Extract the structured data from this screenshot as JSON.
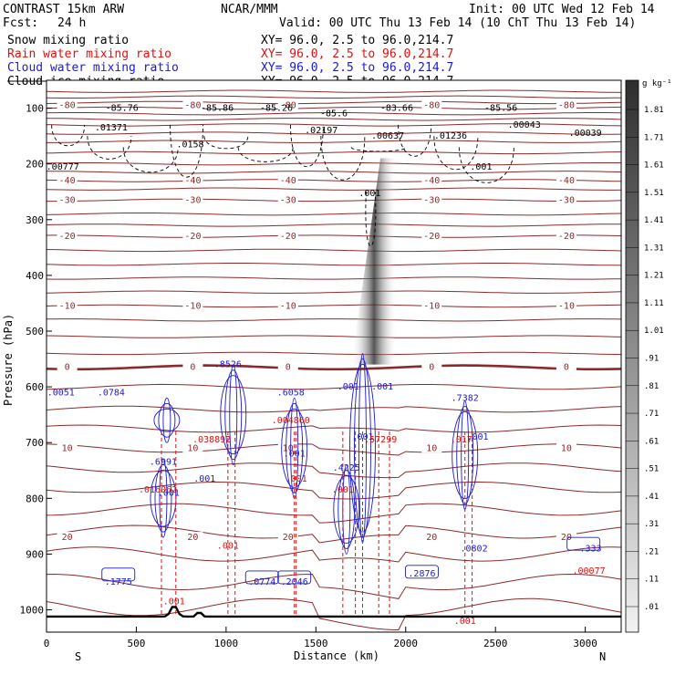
{
  "header": {
    "model": "CONTRAST 15km ARW",
    "org": "NCAR/MMM",
    "init": "Init: 00 UTC Wed 12 Feb 14",
    "fcst_label": "Fcst:",
    "fcst_value": "24 h",
    "valid": "Valid: 00 UTC Thu 13 Feb 14 (10 ChT Thu 13 Feb 14)"
  },
  "fields": [
    {
      "name": "Snow mixing ratio",
      "color": "#000000",
      "xy": "XY=  96.0,  2.5 to  96.0,214.7"
    },
    {
      "name": "Rain water mixing ratio",
      "color": "#e01010",
      "xy": "XY=  96.0,  2.5 to  96.0,214.7"
    },
    {
      "name": "Cloud water mixing ratio",
      "color": "#1a1ad0",
      "xy": "XY=  96.0,  2.5 to  96.0,214.7"
    },
    {
      "name": "Cloud ice mixing ratio",
      "color": "#000000",
      "xy": "XY=  96.0,  2.5 to  96.0,214.7"
    }
  ],
  "colorbar": {
    "unit": "g kg⁻¹",
    "labels": [
      "1.81",
      "1.71",
      "1.61",
      "1.51",
      "1.41",
      "1.31",
      "1.21",
      "1.11",
      "1.01",
      ".91",
      ".81",
      ".71",
      ".61",
      ".51",
      ".41",
      ".31",
      ".21",
      ".11",
      ".01"
    ]
  },
  "chart_data": {
    "type": "contour",
    "xlabel": "Distance (km)",
    "ylabel": "Pressure (hPa)",
    "x_ticks": [
      "0",
      "500",
      "1000",
      "1500",
      "2000",
      "2500",
      "3000"
    ],
    "y_ticks": [
      "100",
      "200",
      "300",
      "400",
      "500",
      "600",
      "700",
      "800",
      "900",
      "1000"
    ],
    "xlim": [
      0,
      3200
    ],
    "ylim": [
      1040,
      50
    ],
    "endpoints": {
      "left": "S",
      "right": "N"
    },
    "temperature_isotherms": [
      {
        "label": "-80",
        "p": 95
      },
      {
        "label": "-40",
        "p": 230
      },
      {
        "label": "-30",
        "p": 265
      },
      {
        "label": "-20",
        "p": 330
      },
      {
        "label": "-10",
        "p": 455
      },
      {
        "label": "0",
        "p": 565
      },
      {
        "label": "10",
        "p": 710
      },
      {
        "label": "20",
        "p": 870
      }
    ],
    "pressure_labels_on_isotherms": [
      {
        "text": "-85.76",
        "x": 420,
        "p": 105
      },
      {
        "text": "-85.86",
        "x": 950,
        "p": 105
      },
      {
        "text": "-85.26",
        "x": 1280,
        "p": 105
      },
      {
        "text": "-85.6",
        "x": 1600,
        "p": 115
      },
      {
        "text": "-83.66",
        "x": 1950,
        "p": 105
      },
      {
        "text": "-85.56",
        "x": 2530,
        "p": 105
      }
    ],
    "cloud_ice_extrema": [
      {
        "text": ".01371",
        "x": 360,
        "p": 140
      },
      {
        "text": ".0158",
        "x": 800,
        "p": 170
      },
      {
        "text": ".02197",
        "x": 1530,
        "p": 145
      },
      {
        "text": ".00637",
        "x": 1900,
        "p": 155
      },
      {
        "text": ".01236",
        "x": 2250,
        "p": 155
      },
      {
        "text": ".00043",
        "x": 2660,
        "p": 135
      },
      {
        "text": ".00039",
        "x": 3000,
        "p": 150
      },
      {
        "text": ".00777",
        "x": 90,
        "p": 210
      },
      {
        "text": ".001",
        "x": 2420,
        "p": 210
      },
      {
        "text": ".001",
        "x": 1800,
        "p": 258
      }
    ],
    "cloud_water_extrema": [
      {
        "text": ".0051",
        "x": 80,
        "p": 615
      },
      {
        "text": ".0784",
        "x": 360,
        "p": 615
      },
      {
        "text": ".8526",
        "x": 1010,
        "p": 565
      },
      {
        "text": ".6058",
        "x": 1360,
        "p": 615
      },
      {
        "text": ".001",
        "x": 1680,
        "p": 605
      },
      {
        "text": ".001",
        "x": 1870,
        "p": 605
      },
      {
        "text": ".7382",
        "x": 2330,
        "p": 625
      },
      {
        "text": ".001",
        "x": 2400,
        "p": 695
      },
      {
        "text": ".6991",
        "x": 650,
        "p": 740
      },
      {
        "text": ".001",
        "x": 880,
        "p": 770
      },
      {
        "text": ".001",
        "x": 1380,
        "p": 725
      },
      {
        "text": ".4225",
        "x": 1670,
        "p": 750
      },
      {
        "text": ".001",
        "x": 1760,
        "p": 695
      },
      {
        "text": ".001",
        "x": 680,
        "p": 795
      },
      {
        "text": ".1775",
        "x": 400,
        "p": 955
      },
      {
        "text": ".0774",
        "x": 1200,
        "p": 955
      },
      {
        "text": ".2046",
        "x": 1380,
        "p": 955
      },
      {
        "text": ".2876",
        "x": 2090,
        "p": 940
      },
      {
        "text": ".0802",
        "x": 2380,
        "p": 895
      },
      {
        "text": ".333",
        "x": 3030,
        "p": 895
      }
    ],
    "rain_extrema": [
      {
        "text": ".038892",
        "x": 920,
        "p": 700
      },
      {
        "text": ".004860",
        "x": 1360,
        "p": 665
      },
      {
        "text": ".57299",
        "x": 1860,
        "p": 700
      },
      {
        "text": ".017",
        "x": 2310,
        "p": 700
      },
      {
        "text": ".016062",
        "x": 620,
        "p": 790
      },
      {
        "text": ".001",
        "x": 1390,
        "p": 770
      },
      {
        "text": ".001",
        "x": 1010,
        "p": 890
      },
      {
        "text": ".001",
        "x": 1650,
        "p": 790
      },
      {
        "text": ".001",
        "x": 710,
        "p": 990
      },
      {
        "text": ".001",
        "x": 2330,
        "p": 1025
      },
      {
        "text": ".00077",
        "x": 3020,
        "p": 935
      }
    ],
    "snow_core": {
      "x_top": 1900,
      "p_top": 190,
      "x_bottom": 1830,
      "p_bottom": 560
    }
  }
}
